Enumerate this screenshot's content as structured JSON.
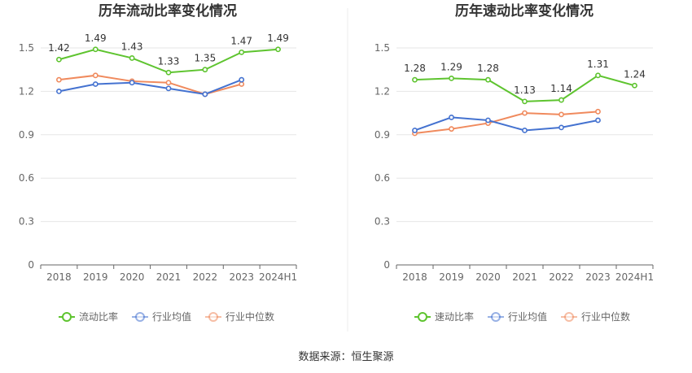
{
  "source": "数据来源：恒生聚源",
  "colors": {
    "main": "#5ec42f",
    "avg": "#4472d0",
    "median": "#f08a5d",
    "grid": "#e6e6e6",
    "axis": "#666666"
  },
  "chart_data": [
    {
      "type": "line",
      "title": "历年流动比率变化情况",
      "categories": [
        "2018",
        "2019",
        "2020",
        "2021",
        "2022",
        "2023",
        "2024H1"
      ],
      "ylim": [
        0,
        1.5
      ],
      "yticks": [
        "0",
        "0.3",
        "0.6",
        "0.9",
        "1.2",
        "1.5"
      ],
      "legend_position": "bottom",
      "series": [
        {
          "name": "流动比率",
          "role": "main",
          "values": [
            1.42,
            1.49,
            1.43,
            1.33,
            1.35,
            1.47,
            1.49
          ],
          "labels": [
            "1.42",
            "1.49",
            "1.43",
            "1.33",
            "1.35",
            "1.47",
            "1.49"
          ]
        },
        {
          "name": "行业均值",
          "role": "avg",
          "values": [
            1.2,
            1.25,
            1.26,
            1.22,
            1.18,
            1.28,
            null
          ]
        },
        {
          "name": "行业中位数",
          "role": "median",
          "values": [
            1.28,
            1.31,
            1.27,
            1.26,
            1.18,
            1.25,
            null
          ]
        }
      ]
    },
    {
      "type": "line",
      "title": "历年速动比率变化情况",
      "categories": [
        "2018",
        "2019",
        "2020",
        "2021",
        "2022",
        "2023",
        "2024H1"
      ],
      "ylim": [
        0,
        1.5
      ],
      "yticks": [
        "0",
        "0.3",
        "0.6",
        "0.9",
        "1.2",
        "1.5"
      ],
      "legend_position": "bottom",
      "series": [
        {
          "name": "速动比率",
          "role": "main",
          "values": [
            1.28,
            1.29,
            1.28,
            1.13,
            1.14,
            1.31,
            1.24
          ],
          "labels": [
            "1.28",
            "1.29",
            "1.28",
            "1.13",
            "1.14",
            "1.31",
            "1.24"
          ]
        },
        {
          "name": "行业均值",
          "role": "avg",
          "values": [
            0.93,
            1.02,
            1.0,
            0.93,
            0.95,
            1.0,
            null
          ]
        },
        {
          "name": "行业中位数",
          "role": "median",
          "values": [
            0.91,
            0.94,
            0.98,
            1.05,
            1.04,
            1.06,
            null
          ]
        }
      ]
    }
  ]
}
